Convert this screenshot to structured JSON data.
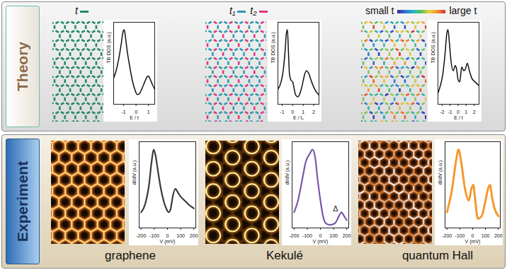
{
  "figure": {
    "rows": [
      {
        "label": "Theory",
        "panels": [
          {
            "legend": [
              {
                "label": "t",
                "color": "#22876b"
              }
            ]
          },
          {
            "legend": [
              {
                "label": "t₁",
                "color": "#2a9ab0"
              },
              {
                "label": "t₂",
                "color": "#e0387a"
              }
            ]
          },
          {
            "colorbar": {
              "low": "small t",
              "high": "large t",
              "colors": [
                "#3b2a98",
                "#2c6fd8",
                "#27b5c8",
                "#5cc05a",
                "#f0d23a",
                "#f2902a",
                "#d92b2b"
              ]
            }
          }
        ]
      },
      {
        "label": "Experiment",
        "panels": [
          {
            "title": "graphene"
          },
          {
            "title": "Kekulé"
          },
          {
            "title": "quantum Hall"
          }
        ]
      }
    ]
  },
  "chart_data": [
    {
      "type": "line",
      "x_label": "E / t",
      "y_label": "TB DOS (a.u.)",
      "color": "#111111",
      "tick_labels": "x",
      "xlim": [
        -1.8,
        1.5
      ],
      "ylim": [
        0,
        1.1
      ],
      "xticks": [
        -1,
        0,
        1
      ],
      "x": [
        -1.8,
        -1.6,
        -1.4,
        -1.2,
        -1.05,
        -0.95,
        -0.85,
        -0.7,
        -0.5,
        -0.3,
        -0.1,
        0.1,
        0.3,
        0.5,
        0.7,
        0.9,
        1.0,
        1.1,
        1.3,
        1.5
      ],
      "values": [
        0.35,
        0.45,
        0.6,
        0.8,
        0.97,
        1.0,
        0.9,
        0.7,
        0.5,
        0.32,
        0.2,
        0.13,
        0.15,
        0.22,
        0.3,
        0.37,
        0.38,
        0.35,
        0.27,
        0.2
      ]
    },
    {
      "type": "line",
      "x_label": "E / t₁",
      "y_label": "TB DOS (a.u.)",
      "color": "#111111",
      "tick_labels": "x",
      "xlim": [
        -1.4,
        2.5
      ],
      "ylim": [
        0,
        1.1
      ],
      "xticks": [
        -1,
        0,
        1,
        2
      ],
      "x": [
        -1.4,
        -1.1,
        -0.9,
        -0.7,
        -0.6,
        -0.5,
        -0.4,
        -0.3,
        -0.15,
        0,
        0.15,
        0.3,
        0.5,
        0.7,
        0.9,
        1.1,
        1.3,
        1.5,
        1.8,
        2.1,
        2.5
      ],
      "values": [
        0.2,
        0.3,
        0.45,
        0.75,
        0.95,
        1.0,
        0.7,
        0.4,
        0.32,
        0.3,
        0.2,
        0.12,
        0.1,
        0.15,
        0.25,
        0.38,
        0.45,
        0.42,
        0.3,
        0.2,
        0.12
      ]
    },
    {
      "type": "line",
      "x_label": "E / t",
      "y_label": "TB DOS (a.u.)",
      "color": "#111111",
      "tick_labels": "x",
      "xlim": [
        -2.5,
        2.6
      ],
      "ylim": [
        0,
        1.1
      ],
      "xticks": [
        -2,
        -1,
        0,
        1,
        2
      ],
      "x": [
        -2.5,
        -2.2,
        -1.9,
        -1.6,
        -1.4,
        -1.25,
        -1.1,
        -0.9,
        -0.6,
        -0.35,
        -0.2,
        0,
        0.2,
        0.45,
        0.7,
        0.9,
        1.15,
        1.4,
        1.7,
        2.1,
        2.6
      ],
      "values": [
        0.15,
        0.25,
        0.4,
        0.7,
        0.95,
        1.0,
        0.85,
        0.6,
        0.45,
        0.52,
        0.48,
        0.33,
        0.3,
        0.5,
        0.45,
        0.47,
        0.55,
        0.45,
        0.35,
        0.3,
        0.25
      ]
    },
    {
      "type": "line",
      "x_label": "V (mV)",
      "y_label": "dI/dV (a.u.)",
      "color": "#3a3a3a",
      "tick_labels": "x",
      "xlim": [
        -215,
        215
      ],
      "ylim": [
        0,
        1.1
      ],
      "xticks": [
        -200,
        -100,
        0,
        100,
        200
      ],
      "x": [
        -200,
        -170,
        -140,
        -120,
        -105,
        -90,
        -70,
        -50,
        -30,
        -10,
        10,
        25,
        40,
        60,
        80,
        100,
        130,
        160,
        200
      ],
      "values": [
        0.2,
        0.3,
        0.55,
        0.85,
        1.0,
        0.92,
        0.7,
        0.5,
        0.35,
        0.25,
        0.2,
        0.25,
        0.4,
        0.5,
        0.45,
        0.4,
        0.35,
        0.3,
        0.25
      ]
    },
    {
      "type": "line",
      "x_label": "V (mV)",
      "y_label": "dI/dV (a.u.)",
      "color": "#7a57a8",
      "tick_labels": "x",
      "xlim": [
        -215,
        215
      ],
      "ylim": [
        0,
        1.1
      ],
      "xticks": [
        -200,
        -100,
        0,
        100,
        200
      ],
      "x": [
        -200,
        -170,
        -140,
        -110,
        -80,
        -60,
        -40,
        -20,
        0,
        20,
        40,
        70,
        100,
        120,
        140,
        160,
        180,
        200
      ],
      "values": [
        0.2,
        0.35,
        0.6,
        0.85,
        0.95,
        1.0,
        0.9,
        0.6,
        0.35,
        0.15,
        0.06,
        0.04,
        0.05,
        0.08,
        0.15,
        0.2,
        0.15,
        0.1
      ],
      "annotations": [
        {
          "text": "Δ",
          "x": 115,
          "y": 0.24
        }
      ]
    },
    {
      "type": "line",
      "x_label": "V (mV)",
      "y_label": "dI/dV (a.u.)",
      "color": "#f39a2e",
      "tick_labels": "x",
      "xlim": [
        -215,
        215
      ],
      "ylim": [
        0,
        1.1
      ],
      "xticks": [
        -200,
        -100,
        0,
        100,
        200
      ],
      "x": [
        -200,
        -160,
        -130,
        -110,
        -90,
        -60,
        -30,
        -10,
        5,
        20,
        40,
        70,
        100,
        120,
        135,
        150,
        170,
        200
      ],
      "values": [
        0.2,
        0.5,
        0.85,
        1.0,
        0.85,
        0.5,
        0.35,
        0.5,
        0.55,
        0.35,
        0.12,
        0.15,
        0.35,
        0.5,
        0.55,
        0.4,
        0.25,
        0.15
      ]
    }
  ]
}
